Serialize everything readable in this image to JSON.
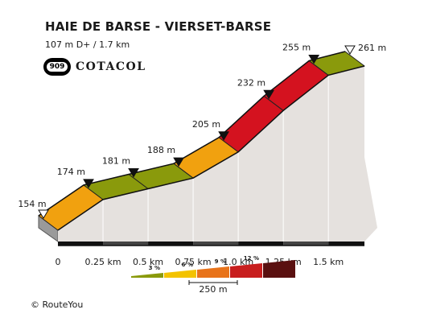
{
  "header": {
    "title": "HAIE DE BARSE - VIERSET-BARSE",
    "subtitle": "107 m D+ / 1.7 km"
  },
  "logo": {
    "badge_number": "909",
    "brand": "COTACOL"
  },
  "footer": {
    "copyright": "© RouteYou"
  },
  "chart_data": {
    "type": "area",
    "title": "HAIE DE BARSE - VIERSET-BARSE",
    "subtitle": "107 m D+ / 1.7 km",
    "xlabel": "",
    "ylabel": "",
    "distance_km": [
      0,
      0.25,
      0.5,
      0.75,
      1.0,
      1.25,
      1.5,
      1.7
    ],
    "elevation_m": [
      154,
      174,
      181,
      188,
      205,
      232,
      255,
      261
    ],
    "elevation_labels": [
      "154 m",
      "174 m",
      "181 m",
      "188 m",
      "205 m",
      "232 m",
      "255 m",
      "261 m"
    ],
    "x_tick_labels": [
      "0",
      "0.25 km",
      "0.5 km",
      "0.75 km",
      "1.0 km",
      "1.25 km",
      "1.5 km"
    ],
    "xlim": [
      0,
      1.7
    ],
    "ylim": [
      154,
      261
    ],
    "segment_colors": [
      "#f1a10f",
      "#8a9a0c",
      "#8a9a0c",
      "#f1a10f",
      "#d4121f",
      "#d4121f",
      "#8a9a0c"
    ],
    "grid": false,
    "legend": {
      "placement": "bottom",
      "entries": [
        {
          "label": "3 %",
          "color": "#8a9a0c"
        },
        {
          "label": "6 %",
          "color": "#f3c300"
        },
        {
          "label": "9 %",
          "color": "#e8731a"
        },
        {
          "label": "12 %",
          "color": "#c81e1e"
        },
        {
          "label": "",
          "color": "#5a1010"
        }
      ],
      "scale_label": "250 m"
    },
    "colors": {
      "side_face": "#e5e1de",
      "base": "#111111",
      "left_face": "#9a9a9a"
    }
  }
}
